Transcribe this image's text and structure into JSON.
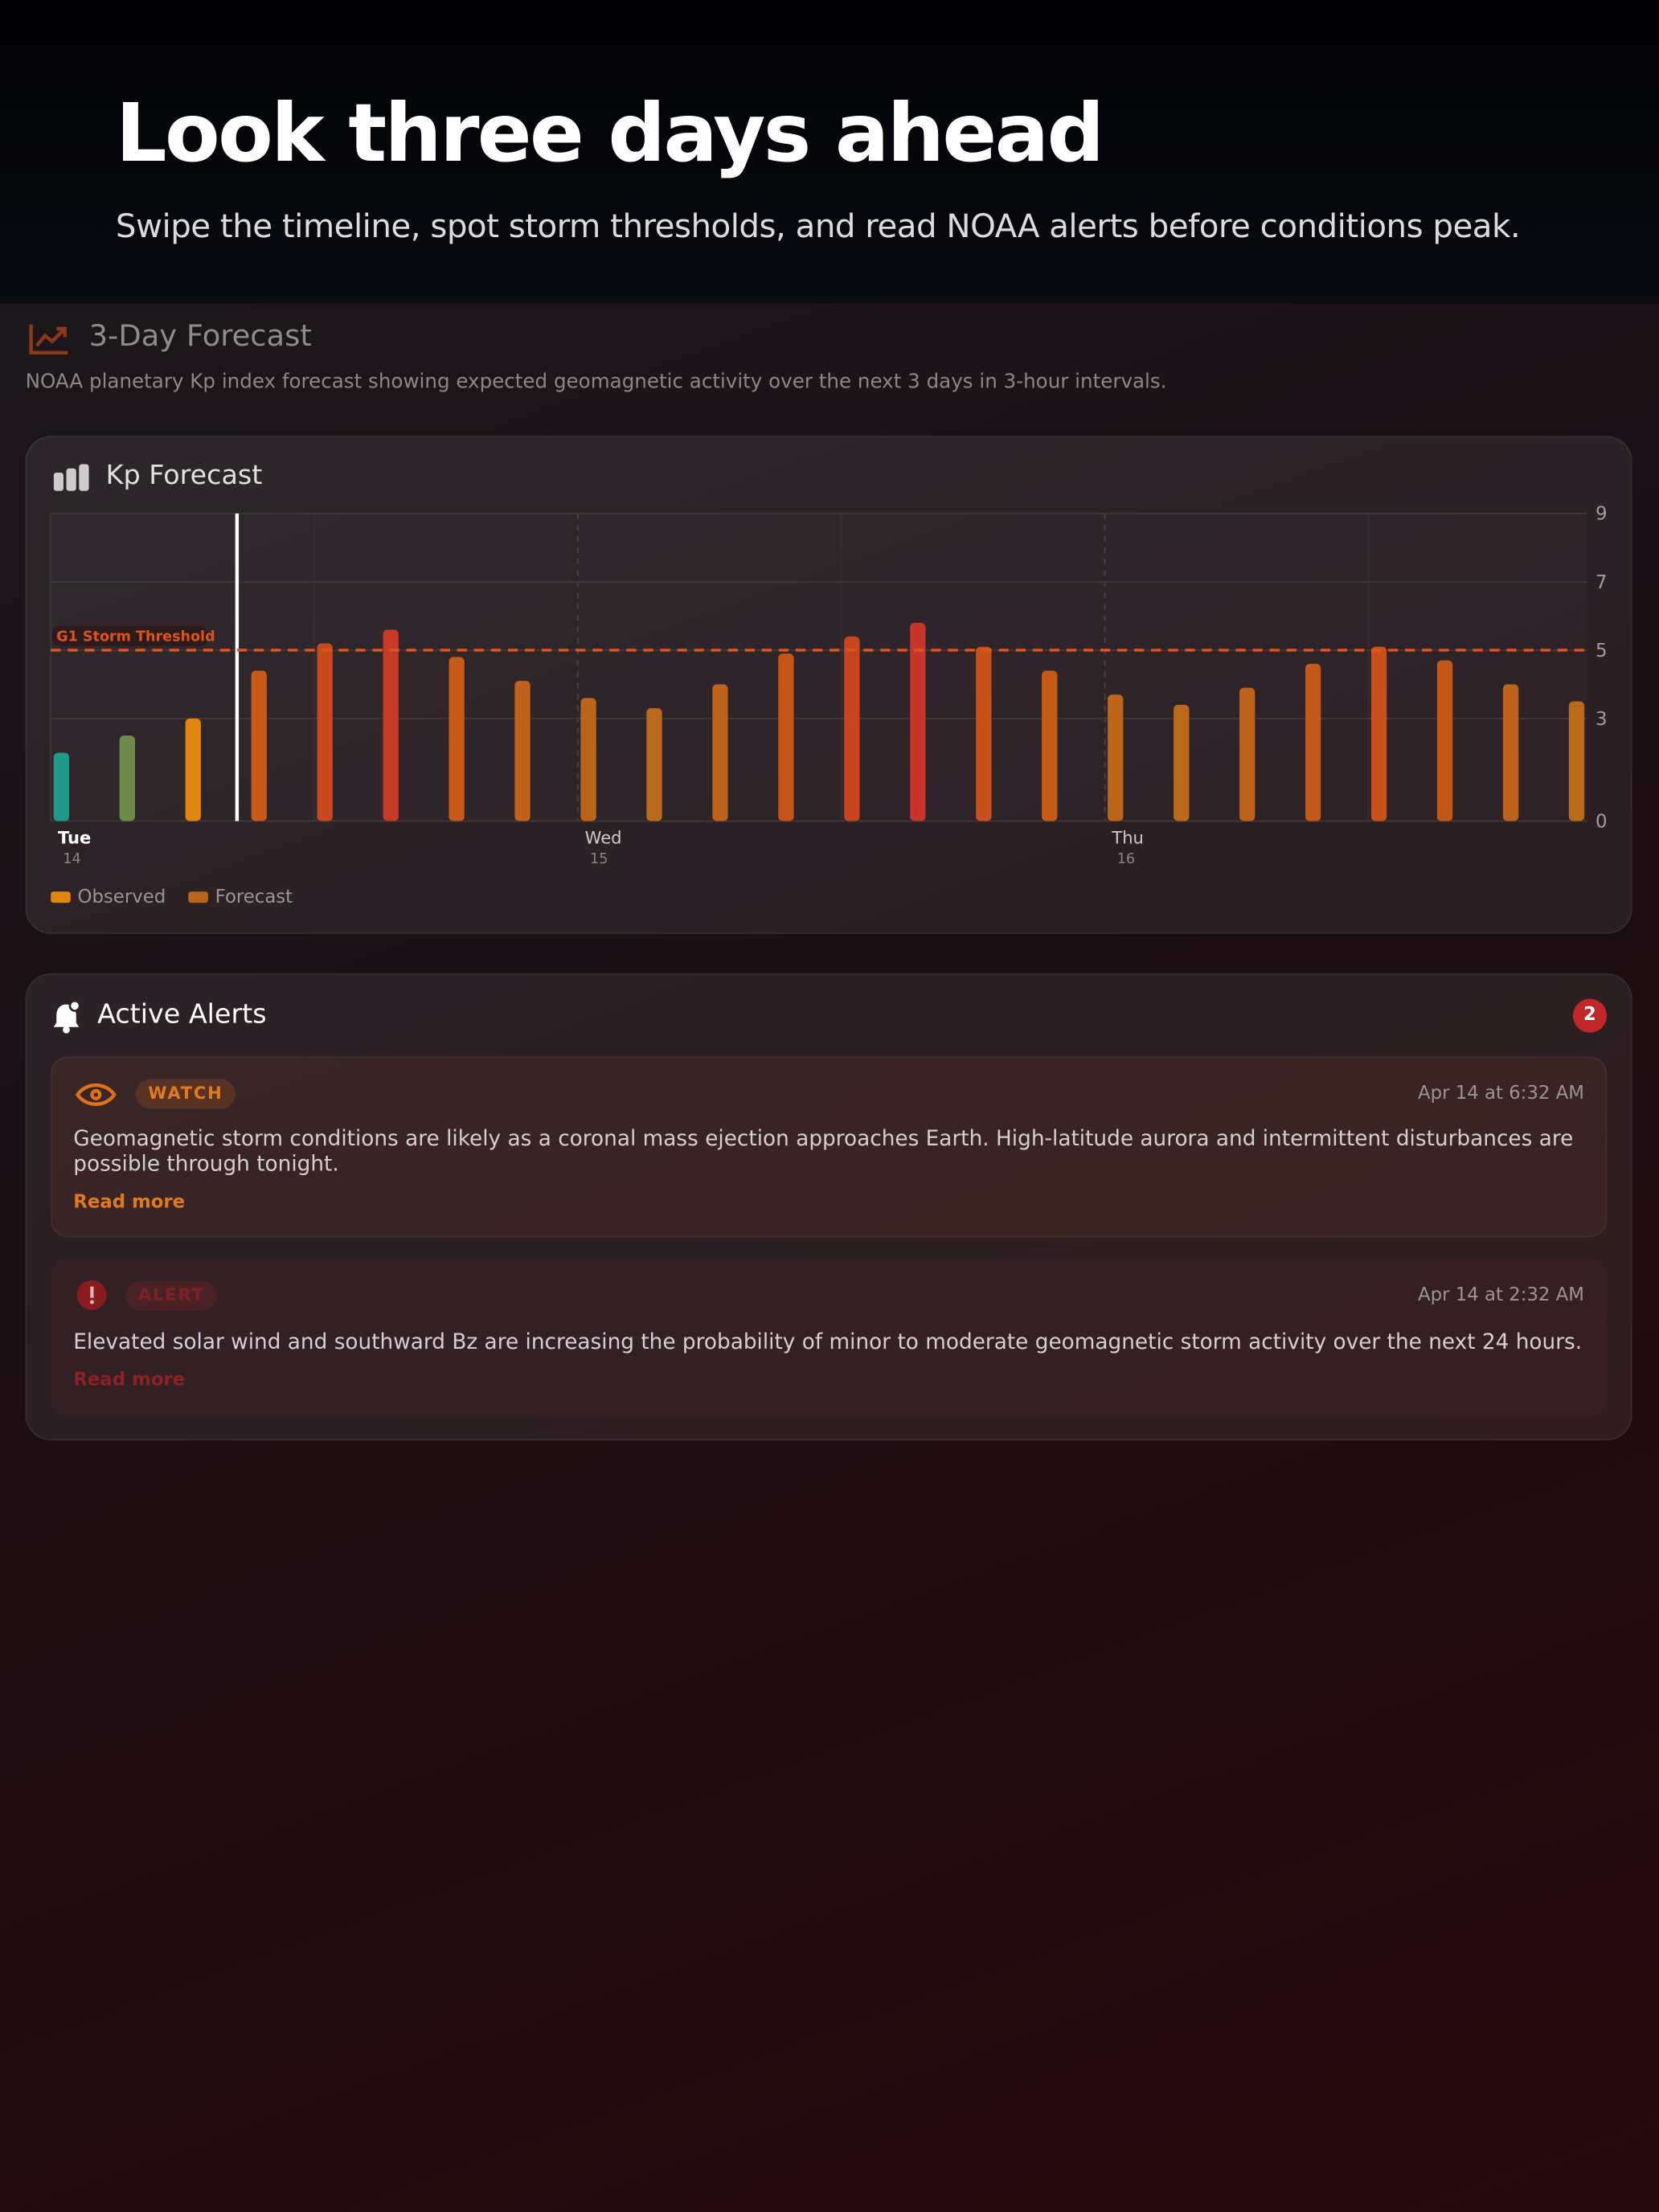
{
  "hero": {
    "title": "Look three days ahead",
    "subtitle": "Swipe the timeline, spot storm thresholds, and read NOAA alerts before conditions peak."
  },
  "section": {
    "title": "3-Day Forecast",
    "description": "NOAA planetary Kp index forecast showing expected geomagnetic activity over the next 3 days in 3-hour intervals."
  },
  "chart_data": {
    "type": "bar",
    "title": "Kp Forecast",
    "categories": [
      "Tue",
      null,
      null,
      null,
      null,
      null,
      null,
      null,
      "Wed",
      null,
      null,
      null,
      null,
      null,
      null,
      null,
      "Thu",
      null,
      null,
      null,
      null,
      null,
      null,
      null
    ],
    "category_dates": [
      "14",
      null,
      null,
      null,
      null,
      null,
      null,
      null,
      "15",
      null,
      null,
      null,
      null,
      null,
      null,
      null,
      "16",
      null,
      null,
      null,
      null,
      null,
      null,
      null
    ],
    "series": [
      {
        "name": "Observed",
        "color": "#e0860f",
        "values": [
          2.0,
          2.5,
          3.0,
          null,
          null,
          null,
          null,
          null,
          null,
          null,
          null,
          null,
          null,
          null,
          null,
          null,
          null,
          null,
          null,
          null,
          null,
          null,
          null,
          null
        ]
      },
      {
        "name": "Forecast",
        "color": "#b8661a",
        "values": [
          null,
          null,
          null,
          4.4,
          5.2,
          5.6,
          4.8,
          4.1,
          3.6,
          3.3,
          4.0,
          4.9,
          5.4,
          5.8,
          5.1,
          4.4,
          3.7,
          3.4,
          3.9,
          4.6,
          5.1,
          4.7,
          4.0,
          3.5
        ]
      }
    ],
    "bar_colors": [
      "#1f9a86",
      "#6e8a4a",
      "#e0860f",
      "#c65a16",
      "#c84a1c",
      "#c83a26",
      "#c55a16",
      "#c0601a",
      "#bb651a",
      "#b86a1a",
      "#bd621a",
      "#c55418",
      "#c8441e",
      "#c8332a",
      "#c8501a",
      "#c55a16",
      "#bb651a",
      "#b86a1a",
      "#bd621a",
      "#c2581a",
      "#c8501a",
      "#c25818",
      "#bd621a",
      "#b86a1a"
    ],
    "ylim": [
      0,
      9
    ],
    "yticks": [
      0,
      3,
      5,
      7,
      9
    ],
    "grid": true,
    "threshold": {
      "value": 5,
      "label": "G1 Storm Threshold",
      "color": "#e0541a"
    }
  },
  "alerts": {
    "title": "Active Alerts",
    "count": 2,
    "items": [
      {
        "type": "WATCH",
        "time": "Apr 14 at 6:32 AM",
        "text": "Geomagnetic storm conditions are likely as a coronal mass ejection approaches Earth. High-latitude aurora and intermittent disturbances are possible through tonight.",
        "link": "Read more"
      },
      {
        "type": "ALERT",
        "time": "Apr 14 at 2:32 AM",
        "text": "Elevated solar wind and southward Bz are increasing the probability of minor to moderate geomagnetic storm activity over the next 24 hours.",
        "link": "Read more"
      }
    ]
  }
}
